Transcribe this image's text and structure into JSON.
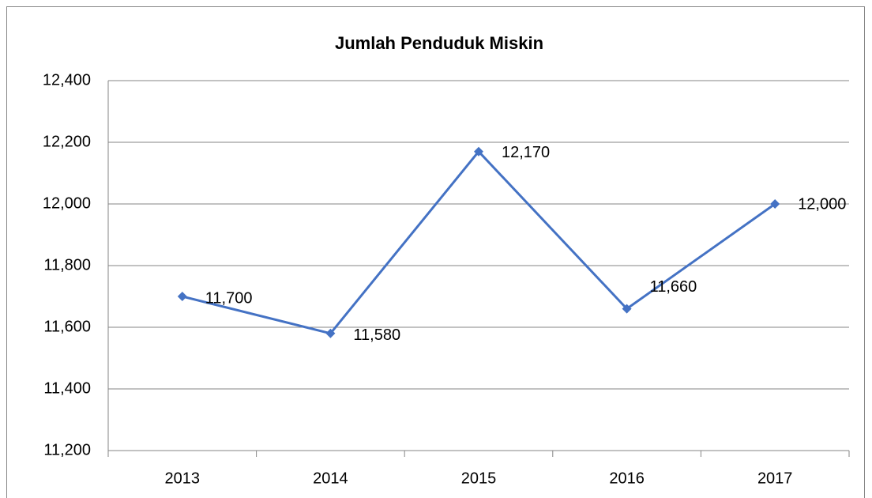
{
  "chart_data": {
    "type": "line",
    "title": "Jumlah Penduduk Miskin",
    "categories": [
      "2013",
      "2014",
      "2015",
      "2016",
      "2017"
    ],
    "values": [
      11700,
      11580,
      12170,
      11660,
      12000
    ],
    "value_labels": [
      "11,700",
      "11,580",
      "12,170",
      "11,660",
      "12,000"
    ],
    "color": "#4472c4",
    "ylim": [
      11200,
      12400
    ],
    "yticks": [
      {
        "value": 11200,
        "label": "11,200"
      },
      {
        "value": 11400,
        "label": "11,400"
      },
      {
        "value": 11600,
        "label": "11,600"
      },
      {
        "value": 11800,
        "label": "11,800"
      },
      {
        "value": 12000,
        "label": "12,000"
      },
      {
        "value": 12200,
        "label": "12,200"
      },
      {
        "value": 12400,
        "label": "12,400"
      }
    ],
    "grid": true
  }
}
